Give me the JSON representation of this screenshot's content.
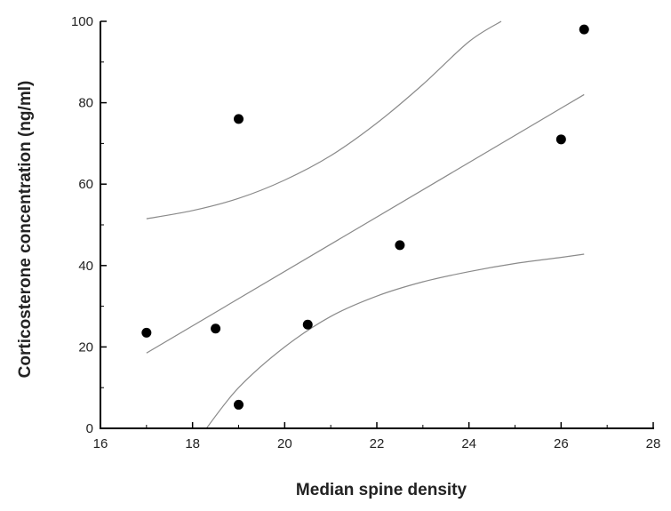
{
  "chart_data": {
    "type": "scatter",
    "title": "",
    "xlabel": "Median spine density",
    "ylabel": "Corticosterone concentration (ng/ml)",
    "xlim": [
      16,
      28
    ],
    "ylim": [
      0,
      100
    ],
    "xticks": [
      "16",
      "18",
      "20",
      "22",
      "24",
      "26",
      "28"
    ],
    "yticks": [
      "0",
      "20",
      "40",
      "60",
      "80",
      "100"
    ],
    "grid": false,
    "legend": "none",
    "point_color": "#000000",
    "line_color": "#8a8a8a",
    "series": [
      {
        "type": "scatter",
        "x": [
          17.0,
          18.5,
          19.0,
          19.0,
          20.5,
          22.5,
          26.0,
          26.5
        ],
        "y": [
          23.5,
          24.5,
          76.0,
          5.8,
          25.5,
          45.0,
          71.0,
          98.0
        ]
      },
      {
        "type": "line",
        "x": [
          17.0,
          26.5
        ],
        "y": [
          18.5,
          82.0
        ]
      },
      {
        "type": "line",
        "x": [
          17.0,
          18.0,
          19.0,
          20.0,
          21.0,
          22.0,
          23.0,
          24.0,
          24.7
        ],
        "y": [
          51.5,
          53.5,
          56.5,
          61.0,
          67.0,
          75.0,
          84.5,
          95.0,
          100.0
        ]
      },
      {
        "type": "line",
        "x": [
          18.3,
          19.0,
          20.0,
          21.0,
          22.0,
          23.0,
          24.0,
          25.0,
          26.0,
          26.5
        ],
        "y": [
          0.0,
          10.0,
          20.0,
          27.5,
          32.5,
          36.0,
          38.5,
          40.5,
          42.0,
          42.8
        ]
      }
    ]
  }
}
